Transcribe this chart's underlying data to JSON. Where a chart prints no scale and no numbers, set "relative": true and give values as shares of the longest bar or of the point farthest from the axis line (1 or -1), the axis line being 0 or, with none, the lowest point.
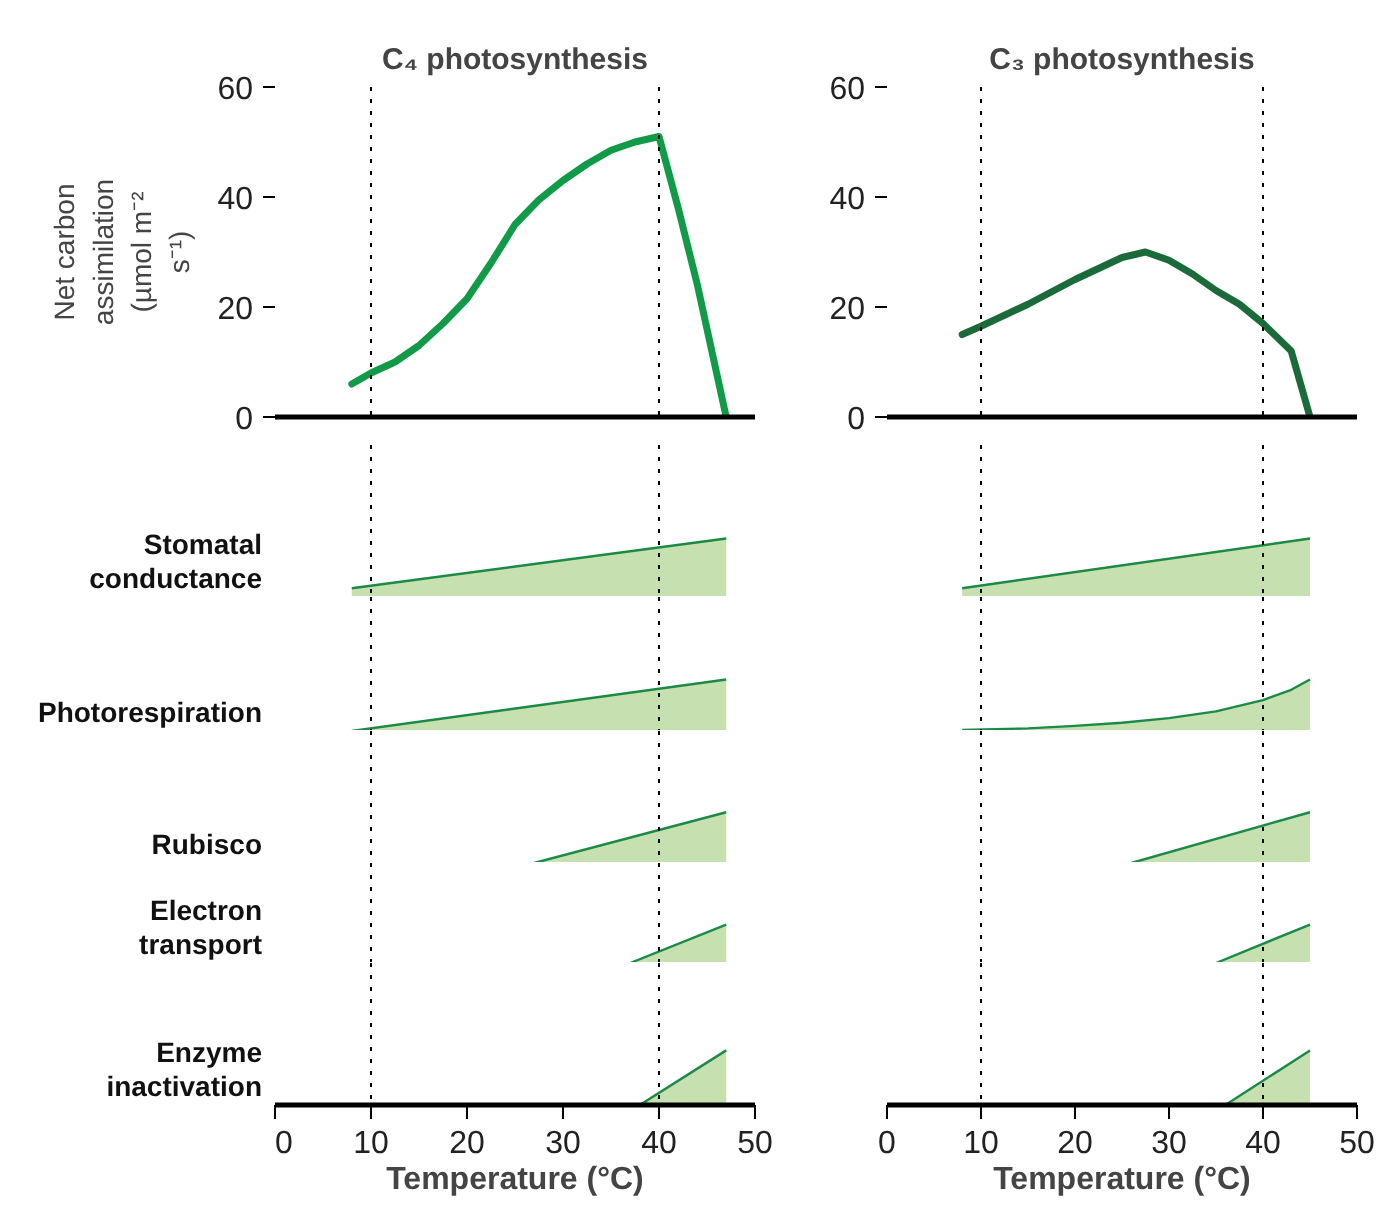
{
  "chart_data": [
    {
      "type": "line",
      "title": "C₄ photosynthesis",
      "ylabel": "Net carbon assimilation (µmol m⁻² s⁻¹)",
      "xlim": [
        0,
        50
      ],
      "ylim": [
        0,
        60
      ],
      "yticks": [
        0,
        20,
        40,
        60
      ],
      "tick_labels": "y",
      "ref_lines": [
        {
          "axis": "x",
          "value": 10
        },
        {
          "axis": "x",
          "value": 40
        }
      ],
      "series": [
        {
          "color": "#119a47",
          "x": [
            8,
            10,
            12.5,
            15,
            17.5,
            20,
            22.5,
            25,
            27.5,
            30,
            32.5,
            35,
            37.5,
            40,
            42,
            44,
            47
          ],
          "values": [
            6,
            8,
            10,
            13,
            17,
            21.5,
            28,
            35,
            39.5,
            43,
            46,
            48.5,
            50,
            51,
            38,
            24,
            0
          ]
        }
      ]
    },
    {
      "type": "line",
      "title": "C₃ photosynthesis",
      "xlim": [
        0,
        50
      ],
      "ylim": [
        0,
        60
      ],
      "yticks": [
        0,
        20,
        40,
        60
      ],
      "tick_labels": "y",
      "ref_lines": [
        {
          "axis": "x",
          "value": 10
        },
        {
          "axis": "x",
          "value": 40
        }
      ],
      "series": [
        {
          "color": "#1b6b3a",
          "x": [
            8,
            10,
            15,
            20,
            25,
            27.5,
            30,
            32.5,
            35,
            37.5,
            40,
            43,
            45
          ],
          "values": [
            15,
            16.5,
            20.5,
            25,
            29,
            30,
            28.5,
            26,
            23,
            20.5,
            17,
            12,
            0
          ]
        }
      ]
    },
    {
      "type": "area",
      "relative": true,
      "ylabel": "Stomatal conductance",
      "xlim": [
        0,
        50
      ],
      "tick_labels": false,
      "ref_lines": [
        {
          "axis": "x",
          "value": 10
        },
        {
          "axis": "x",
          "value": 40
        }
      ],
      "series": [
        {
          "color": "#c6e0b0",
          "x": [
            8,
            47
          ],
          "values": [
            0.15,
            1
          ]
        }
      ]
    },
    {
      "type": "area",
      "relative": true,
      "xlim": [
        0,
        50
      ],
      "tick_labels": false,
      "ref_lines": [
        {
          "axis": "x",
          "value": 10
        },
        {
          "axis": "x",
          "value": 40
        }
      ],
      "series": [
        {
          "color": "#c6e0b0",
          "x": [
            8,
            45
          ],
          "values": [
            0.15,
            1
          ]
        }
      ]
    },
    {
      "type": "area",
      "relative": true,
      "ylabel": "Photorespiration",
      "xlim": [
        0,
        50
      ],
      "tick_labels": false,
      "ref_lines": [
        {
          "axis": "x",
          "value": 10
        },
        {
          "axis": "x",
          "value": 40
        }
      ],
      "series": [
        {
          "color": "#c6e0b0",
          "x": [
            8,
            47
          ],
          "values": [
            0,
            1
          ]
        }
      ]
    },
    {
      "type": "area",
      "relative": true,
      "xlim": [
        0,
        50
      ],
      "tick_labels": false,
      "ref_lines": [
        {
          "axis": "x",
          "value": 10
        },
        {
          "axis": "x",
          "value": 40
        }
      ],
      "series": [
        {
          "color": "#c6e0b0",
          "x": [
            8,
            15,
            20,
            25,
            30,
            35,
            40,
            43,
            45
          ],
          "values": [
            0.02,
            0.05,
            0.1,
            0.16,
            0.25,
            0.38,
            0.6,
            0.8,
            1
          ]
        }
      ]
    },
    {
      "type": "area",
      "relative": true,
      "ylabel": "Rubisco",
      "xlim": [
        0,
        50
      ],
      "tick_labels": false,
      "ref_lines": [
        {
          "axis": "x",
          "value": 10
        },
        {
          "axis": "x",
          "value": 40
        }
      ],
      "series": [
        {
          "color": "#c6e0b0",
          "x": [
            27,
            47
          ],
          "values": [
            0,
            1
          ]
        }
      ]
    },
    {
      "type": "area",
      "relative": true,
      "xlim": [
        0,
        50
      ],
      "tick_labels": false,
      "ref_lines": [
        {
          "axis": "x",
          "value": 10
        },
        {
          "axis": "x",
          "value": 40
        }
      ],
      "series": [
        {
          "color": "#c6e0b0",
          "x": [
            26,
            45
          ],
          "values": [
            0,
            1
          ]
        }
      ]
    },
    {
      "type": "area",
      "relative": true,
      "ylabel": "Electron transport",
      "xlim": [
        0,
        50
      ],
      "tick_labels": false,
      "ref_lines": [
        {
          "axis": "x",
          "value": 10
        },
        {
          "axis": "x",
          "value": 40
        }
      ],
      "series": [
        {
          "color": "#c6e0b0",
          "x": [
            37,
            47
          ],
          "values": [
            0,
            1
          ]
        }
      ]
    },
    {
      "type": "area",
      "relative": true,
      "xlim": [
        0,
        50
      ],
      "tick_labels": false,
      "ref_lines": [
        {
          "axis": "x",
          "value": 10
        },
        {
          "axis": "x",
          "value": 40
        }
      ],
      "series": [
        {
          "color": "#c6e0b0",
          "x": [
            35,
            45
          ],
          "values": [
            0,
            1
          ]
        }
      ]
    },
    {
      "type": "area",
      "relative": true,
      "ylabel": "Enzyme inactivation",
      "xlabel": "Temperature (°C)",
      "xlim": [
        0,
        50
      ],
      "xticks": [
        0,
        10,
        20,
        30,
        40,
        50
      ],
      "ref_lines": [
        {
          "axis": "x",
          "value": 10
        },
        {
          "axis": "x",
          "value": 40
        }
      ],
      "series": [
        {
          "color": "#c6e0b0",
          "x": [
            38,
            47
          ],
          "values": [
            0,
            1
          ]
        }
      ]
    },
    {
      "type": "area",
      "relative": true,
      "xlabel": "Temperature (°C)",
      "xlim": [
        0,
        50
      ],
      "xticks": [
        0,
        10,
        20,
        30,
        40,
        50
      ],
      "ref_lines": [
        {
          "axis": "x",
          "value": 10
        },
        {
          "axis": "x",
          "value": 40
        }
      ],
      "series": [
        {
          "color": "#c6e0b0",
          "x": [
            36,
            45
          ],
          "values": [
            0,
            1
          ]
        }
      ]
    }
  ]
}
